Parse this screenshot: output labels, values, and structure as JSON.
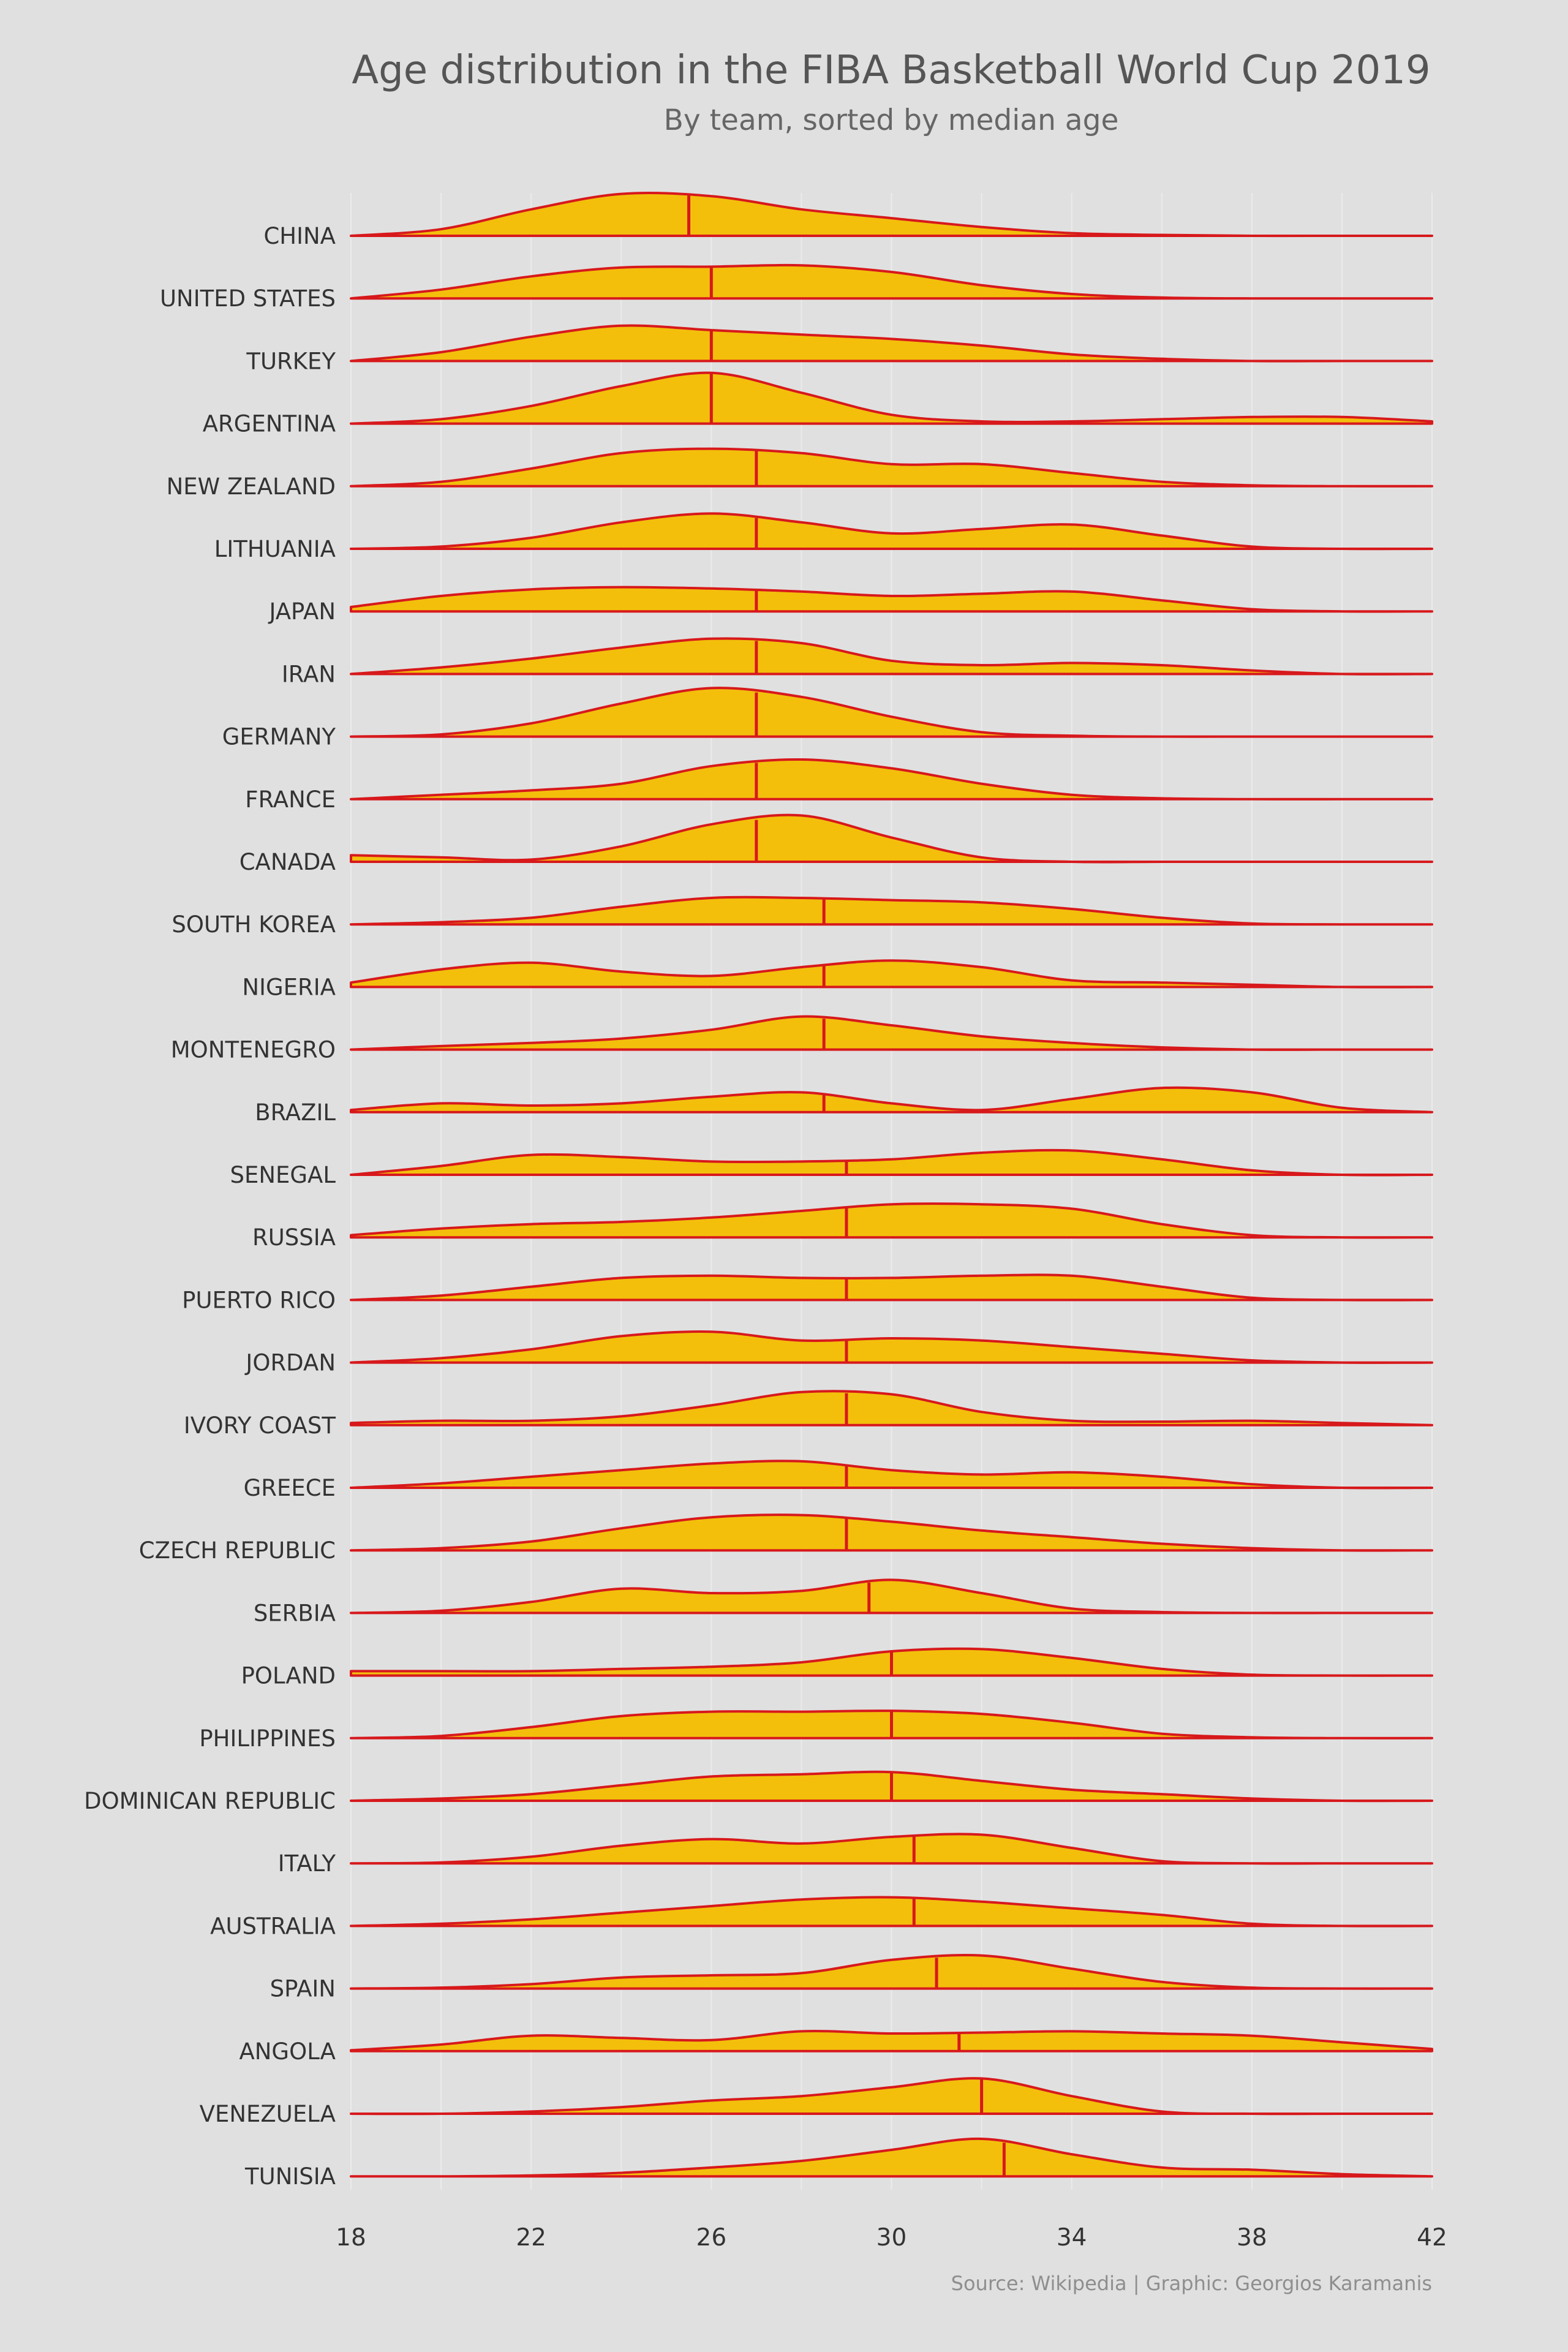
{
  "chart_data": {
    "type": "ridgeline",
    "title": "Age distribution in the FIBA Basketball World Cup 2019",
    "subtitle": "By team, sorted by median age",
    "caption": "Source: Wikipedia | Graphic: Georgios Karamanis",
    "xlim": [
      18,
      42
    ],
    "x_ticks": [
      18,
      22,
      26,
      30,
      34,
      38,
      42
    ],
    "grid": true,
    "fill_color": "#f3bf0b",
    "line_color": "#d7191c",
    "background_color": "#e0e0e0",
    "density_x": [
      18,
      20,
      22,
      24,
      26,
      28,
      30,
      32,
      34,
      36,
      38,
      40,
      42
    ],
    "series": [
      {
        "name": "CHINA",
        "median": 25.5,
        "density": [
          0,
          0.15,
          0.6,
          0.95,
          0.9,
          0.6,
          0.4,
          0.2,
          0.06,
          0.02,
          0,
          0,
          0
        ]
      },
      {
        "name": "UNITED STATES",
        "median": 26,
        "density": [
          0,
          0.2,
          0.5,
          0.7,
          0.72,
          0.75,
          0.6,
          0.3,
          0.1,
          0.02,
          0,
          0,
          0
        ]
      },
      {
        "name": "TURKEY",
        "median": 26,
        "density": [
          0,
          0.2,
          0.55,
          0.8,
          0.7,
          0.6,
          0.5,
          0.35,
          0.15,
          0.05,
          0,
          0,
          0
        ]
      },
      {
        "name": "ARGENTINA",
        "median": 26,
        "density": [
          0,
          0.1,
          0.4,
          0.85,
          1.15,
          0.7,
          0.2,
          0.05,
          0.05,
          0.1,
          0.15,
          0.15,
          0.05
        ]
      },
      {
        "name": "NEW ZEALAND",
        "median": 27,
        "density": [
          0,
          0.1,
          0.4,
          0.75,
          0.85,
          0.75,
          0.5,
          0.5,
          0.3,
          0.1,
          0.02,
          0,
          0
        ]
      },
      {
        "name": "LITHUANIA",
        "median": 27,
        "density": [
          0,
          0.05,
          0.25,
          0.6,
          0.8,
          0.6,
          0.35,
          0.45,
          0.55,
          0.3,
          0.05,
          0,
          0
        ]
      },
      {
        "name": "JAPAN",
        "median": 27,
        "density": [
          0.1,
          0.35,
          0.5,
          0.55,
          0.52,
          0.45,
          0.35,
          0.4,
          0.45,
          0.25,
          0.05,
          0,
          0
        ]
      },
      {
        "name": "IRAN",
        "median": 27,
        "density": [
          0,
          0.15,
          0.35,
          0.6,
          0.8,
          0.7,
          0.3,
          0.2,
          0.25,
          0.2,
          0.08,
          0,
          0
        ]
      },
      {
        "name": "GERMANY",
        "median": 27,
        "density": [
          0,
          0.05,
          0.3,
          0.75,
          1.1,
          0.9,
          0.45,
          0.1,
          0.02,
          0,
          0,
          0,
          0
        ]
      },
      {
        "name": "FRANCE",
        "median": 27,
        "density": [
          0,
          0.1,
          0.2,
          0.35,
          0.75,
          0.9,
          0.7,
          0.35,
          0.1,
          0.02,
          0,
          0,
          0
        ]
      },
      {
        "name": "CANADA",
        "median": 27,
        "density": [
          0.15,
          0.1,
          0.05,
          0.35,
          0.85,
          1.05,
          0.55,
          0.1,
          0,
          0,
          0,
          0,
          0
        ]
      },
      {
        "name": "SOUTH KOREA",
        "median": 28.5,
        "density": [
          0,
          0.05,
          0.15,
          0.4,
          0.6,
          0.6,
          0.55,
          0.5,
          0.35,
          0.15,
          0.02,
          0,
          0
        ]
      },
      {
        "name": "NIGERIA",
        "median": 28.5,
        "density": [
          0.1,
          0.4,
          0.55,
          0.35,
          0.25,
          0.45,
          0.6,
          0.45,
          0.15,
          0.1,
          0.05,
          0,
          0
        ]
      },
      {
        "name": "MONTENEGRO",
        "median": 28.5,
        "density": [
          0,
          0.08,
          0.15,
          0.25,
          0.45,
          0.75,
          0.55,
          0.3,
          0.15,
          0.05,
          0,
          0,
          0
        ]
      },
      {
        "name": "BRAZIL",
        "median": 28.5,
        "density": [
          0.05,
          0.2,
          0.15,
          0.2,
          0.35,
          0.45,
          0.2,
          0.05,
          0.3,
          0.55,
          0.45,
          0.1,
          0
        ]
      },
      {
        "name": "SENEGAL",
        "median": 29,
        "density": [
          0,
          0.2,
          0.45,
          0.4,
          0.3,
          0.3,
          0.35,
          0.5,
          0.55,
          0.35,
          0.1,
          0,
          0
        ]
      },
      {
        "name": "RUSSIA",
        "median": 29,
        "density": [
          0.05,
          0.2,
          0.3,
          0.35,
          0.45,
          0.6,
          0.75,
          0.75,
          0.65,
          0.3,
          0.05,
          0,
          0
        ]
      },
      {
        "name": "PUERTO RICO",
        "median": 29,
        "density": [
          0,
          0.1,
          0.3,
          0.5,
          0.55,
          0.5,
          0.5,
          0.55,
          0.55,
          0.3,
          0.05,
          0,
          0
        ]
      },
      {
        "name": "JORDAN",
        "median": 29,
        "density": [
          0,
          0.1,
          0.3,
          0.6,
          0.7,
          0.5,
          0.55,
          0.5,
          0.35,
          0.2,
          0.05,
          0,
          0
        ]
      },
      {
        "name": "IVORY COAST",
        "median": 29,
        "density": [
          0.05,
          0.1,
          0.1,
          0.2,
          0.45,
          0.75,
          0.7,
          0.3,
          0.1,
          0.08,
          0.1,
          0.05,
          0
        ]
      },
      {
        "name": "GREECE",
        "median": 29,
        "density": [
          0,
          0.1,
          0.25,
          0.4,
          0.55,
          0.6,
          0.4,
          0.3,
          0.35,
          0.25,
          0.08,
          0,
          0
        ]
      },
      {
        "name": "CZECH REPUBLIC",
        "median": 29,
        "density": [
          0,
          0.05,
          0.2,
          0.5,
          0.75,
          0.8,
          0.65,
          0.45,
          0.3,
          0.15,
          0.05,
          0,
          0
        ]
      },
      {
        "name": "SERBIA",
        "median": 29.5,
        "density": [
          0,
          0.05,
          0.25,
          0.55,
          0.45,
          0.5,
          0.75,
          0.45,
          0.1,
          0.02,
          0,
          0,
          0
        ]
      },
      {
        "name": "POLAND",
        "median": 30,
        "density": [
          0.1,
          0.1,
          0.1,
          0.15,
          0.2,
          0.3,
          0.55,
          0.6,
          0.4,
          0.15,
          0.02,
          0,
          0
        ]
      },
      {
        "name": "PHILIPPINES",
        "median": 30,
        "density": [
          0,
          0.05,
          0.25,
          0.5,
          0.6,
          0.6,
          0.62,
          0.55,
          0.35,
          0.1,
          0.02,
          0,
          0
        ]
      },
      {
        "name": "DOMINICAN REPUBLIC",
        "median": 30,
        "density": [
          0,
          0.05,
          0.15,
          0.35,
          0.55,
          0.6,
          0.65,
          0.45,
          0.25,
          0.15,
          0.05,
          0,
          0
        ]
      },
      {
        "name": "ITALY",
        "median": 30.5,
        "density": [
          0,
          0.02,
          0.15,
          0.4,
          0.55,
          0.45,
          0.6,
          0.65,
          0.35,
          0.05,
          0,
          0,
          0
        ]
      },
      {
        "name": "AUSTRALIA",
        "median": 30.5,
        "density": [
          0,
          0.05,
          0.15,
          0.3,
          0.45,
          0.6,
          0.65,
          0.55,
          0.4,
          0.25,
          0.05,
          0,
          0
        ]
      },
      {
        "name": "SPAIN",
        "median": 31,
        "density": [
          0,
          0.02,
          0.1,
          0.25,
          0.3,
          0.35,
          0.65,
          0.75,
          0.45,
          0.15,
          0.02,
          0,
          0
        ]
      },
      {
        "name": "ANGOLA",
        "median": 31.5,
        "density": [
          0.02,
          0.15,
          0.35,
          0.3,
          0.25,
          0.45,
          0.4,
          0.42,
          0.45,
          0.4,
          0.35,
          0.2,
          0.05
        ]
      },
      {
        "name": "VENEZUELA",
        "median": 32,
        "density": [
          0,
          0,
          0.05,
          0.15,
          0.3,
          0.4,
          0.6,
          0.8,
          0.4,
          0.05,
          0,
          0,
          0
        ]
      },
      {
        "name": "TUNISIA",
        "median": 32.5,
        "density": [
          0,
          0,
          0.02,
          0.08,
          0.2,
          0.35,
          0.6,
          0.85,
          0.5,
          0.2,
          0.15,
          0.05,
          0
        ]
      }
    ]
  }
}
